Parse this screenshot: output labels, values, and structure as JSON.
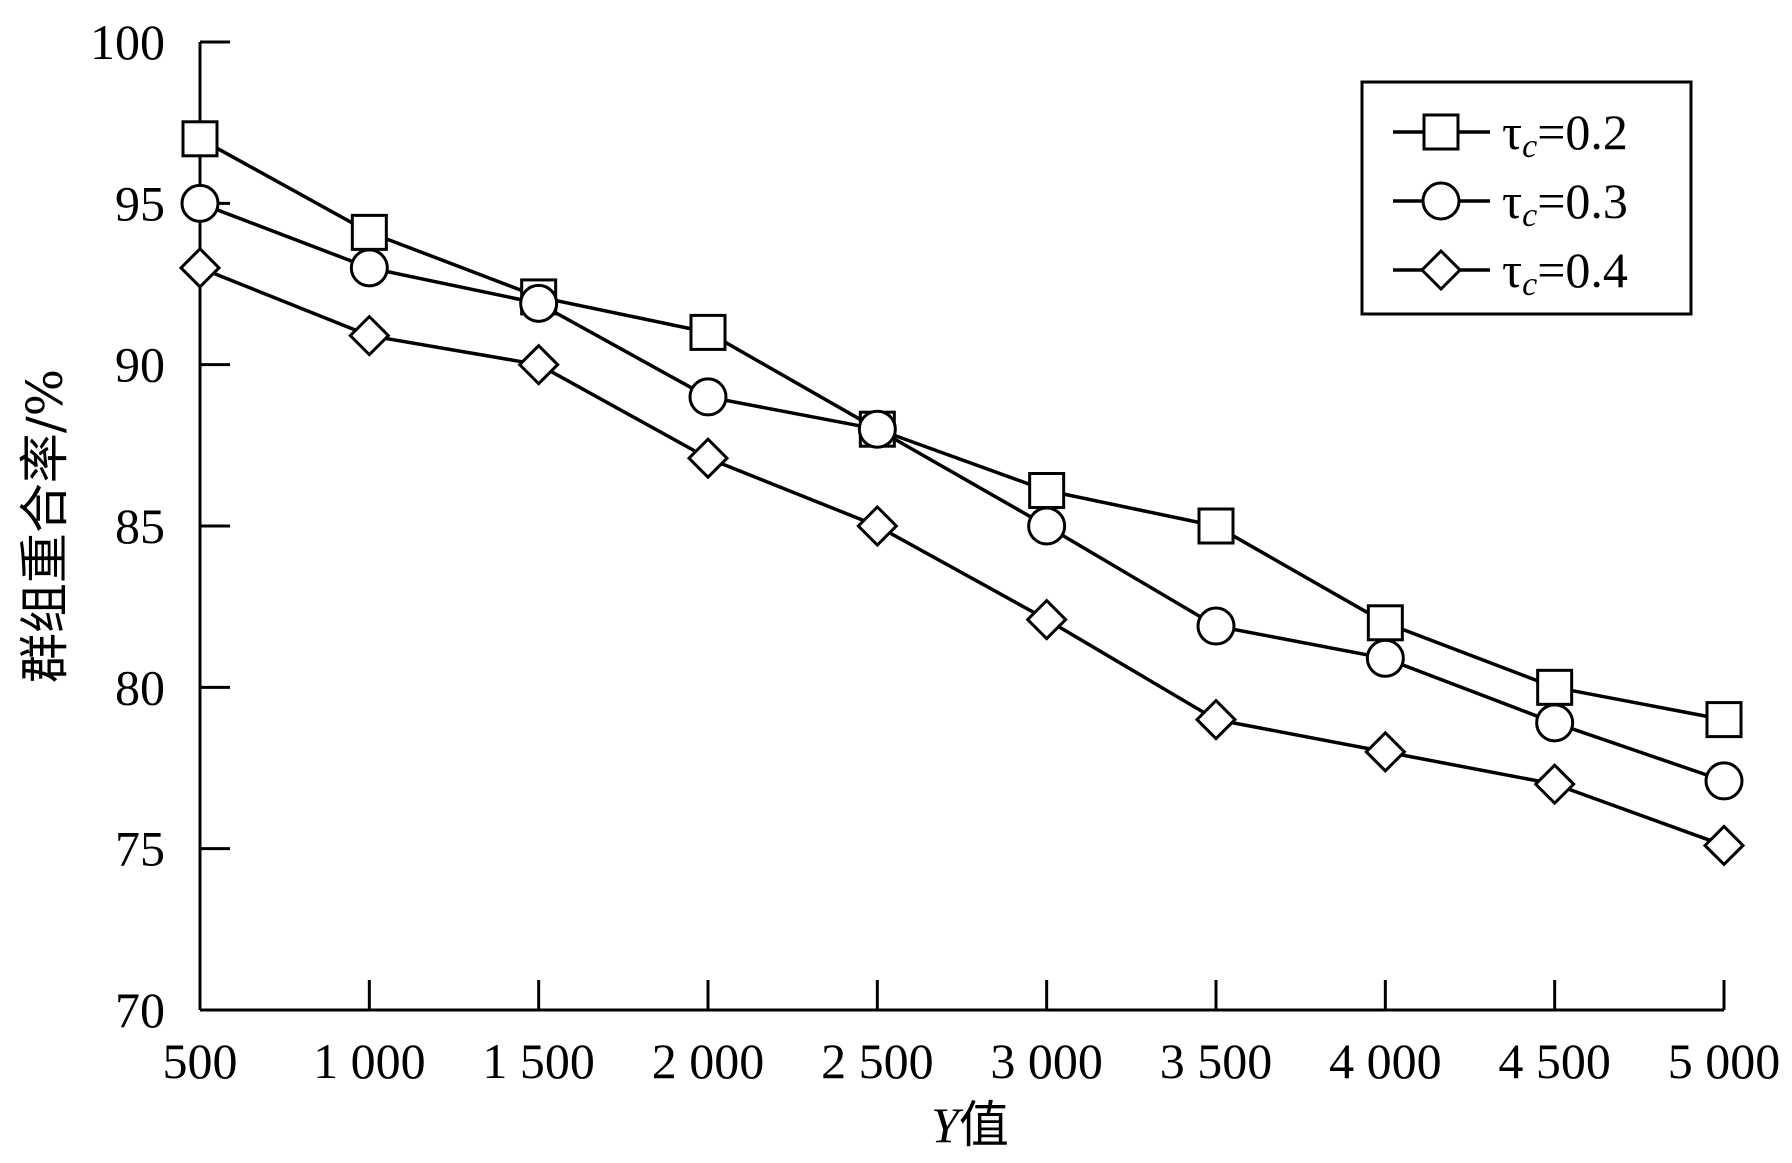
{
  "chart_data": {
    "type": "line",
    "title": "",
    "xlabel": "Y值",
    "xlabel_var": "Y",
    "xlabel_suffix": "值",
    "ylabel": "群组重合率/%",
    "x": [
      500,
      1000,
      1500,
      2000,
      2500,
      3000,
      3500,
      4000,
      4500,
      5000
    ],
    "x_tick_labels": [
      "500",
      "1 000",
      "1 500",
      "2 000",
      "2 500",
      "3 000",
      "3 500",
      "4 000",
      "4 500",
      "5 000"
    ],
    "y_ticks": [
      70,
      75,
      80,
      85,
      90,
      95,
      100
    ],
    "y_tick_labels": [
      "70",
      "75",
      "80",
      "85",
      "90",
      "95",
      "100"
    ],
    "xlim": [
      500,
      5000
    ],
    "ylim": [
      70,
      100
    ],
    "grid": false,
    "legend_position": "top-right",
    "series": [
      {
        "name": "τc=0.2",
        "name_base": "τ",
        "name_sub": "c",
        "name_value": "=0.2",
        "marker": "square",
        "values": [
          97,
          94.1,
          92.1,
          91,
          88,
          86.1,
          85,
          82,
          80,
          79
        ]
      },
      {
        "name": "τc=0.3",
        "name_base": "τ",
        "name_sub": "c",
        "name_value": "=0.3",
        "marker": "circle",
        "values": [
          95,
          93,
          91.9,
          89,
          88,
          85,
          81.9,
          80.9,
          78.9,
          77.1
        ]
      },
      {
        "name": "τc=0.4",
        "name_base": "τ",
        "name_sub": "c",
        "name_value": "=0.4",
        "marker": "diamond",
        "values": [
          93,
          90.9,
          90,
          87.1,
          85,
          82.1,
          79,
          78,
          77,
          75.1
        ]
      }
    ]
  }
}
